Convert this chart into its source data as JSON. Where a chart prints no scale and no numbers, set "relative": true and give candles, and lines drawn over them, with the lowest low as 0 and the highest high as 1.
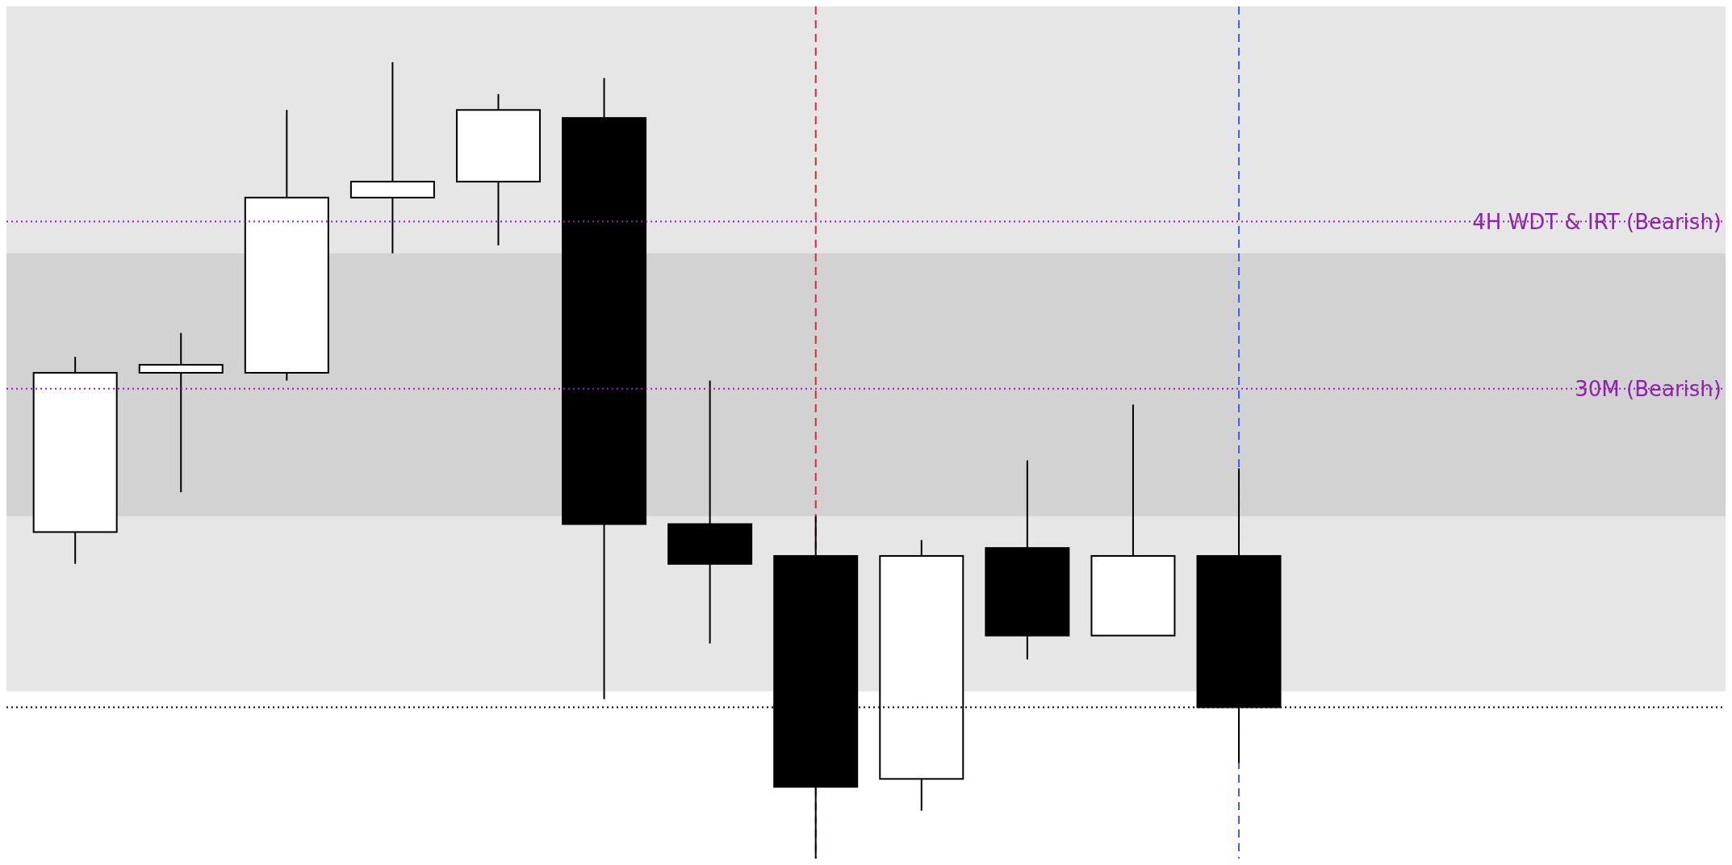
{
  "chart_data": {
    "type": "candlestick",
    "relative": true,
    "grid": false,
    "categories": [
      null,
      null,
      null,
      null,
      null,
      null,
      null,
      null,
      null,
      null,
      null,
      null
    ],
    "ohlc": [
      [
        0.41,
        0.63,
        0.37,
        0.61
      ],
      [
        0.61,
        0.66,
        0.46,
        0.62
      ],
      [
        0.61,
        0.94,
        0.6,
        0.83
      ],
      [
        0.83,
        1,
        0.76,
        0.85
      ],
      [
        0.85,
        0.96,
        0.77,
        0.94
      ],
      [
        0.93,
        0.98,
        0.2,
        0.42
      ],
      [
        0.42,
        0.6,
        0.27,
        0.37
      ],
      [
        0.38,
        0.43,
        0,
        0.09
      ],
      [
        0.1,
        0.4,
        0.06,
        0.38
      ],
      [
        0.39,
        0.5,
        0.25,
        0.28
      ],
      [
        0.28,
        0.57,
        0.28,
        0.38
      ],
      [
        0.38,
        0.49,
        0.12,
        0.19
      ]
    ],
    "bands": [
      {
        "axis": "y",
        "from": 0.21,
        "to": 1.07,
        "color": "#e6e6e6"
      },
      {
        "axis": "y",
        "from": 0.43,
        "to": 0.76,
        "color": "#d2d2d2"
      }
    ],
    "ref_lines": [
      {
        "axis": "y",
        "value": 0.8,
        "label": "4H WDT & IRT (Bearish)",
        "color": "#8e24aa",
        "line_style": "dotted"
      },
      {
        "axis": "y",
        "value": 0.59,
        "label": "30M (Bearish)",
        "color": "#8e24aa",
        "line_style": "dotted"
      },
      {
        "axis": "y",
        "value": 0.19,
        "color": "#000000",
        "line_style": "dotted"
      }
    ]
  }
}
